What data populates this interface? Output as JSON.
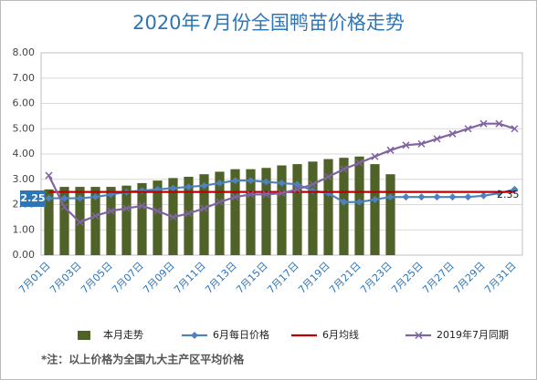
{
  "chart_data": {
    "type": "combo",
    "title": "2020年7月份全国鸭苗价格走势",
    "categories": [
      "7月01日",
      null,
      "7月03日",
      null,
      "7月05日",
      null,
      "7月07日",
      null,
      "7月09日",
      null,
      "7月11日",
      null,
      "7月13日",
      null,
      "7月15日",
      null,
      "7月17日",
      null,
      "7月19日",
      null,
      "7月21日",
      null,
      "7月23日",
      null,
      "7月25日",
      null,
      "7月27日",
      null,
      "7月29日",
      null,
      "7月31日"
    ],
    "series": [
      {
        "name": "本月走势",
        "type": "bar",
        "color": "#4f6228",
        "values": [
          2.6,
          2.7,
          2.7,
          2.7,
          2.7,
          2.75,
          2.85,
          2.95,
          3.05,
          3.1,
          3.2,
          3.3,
          3.4,
          3.4,
          3.45,
          3.55,
          3.6,
          3.7,
          3.8,
          3.85,
          3.9,
          3.6,
          3.2,
          null,
          null,
          null,
          null,
          null,
          null,
          null,
          null
        ]
      },
      {
        "name": "6月每日价格",
        "type": "line",
        "marker": "diamond",
        "color": "#4f81bd",
        "values": [
          2.25,
          2.25,
          2.25,
          2.3,
          2.4,
          2.5,
          2.55,
          2.6,
          2.65,
          2.7,
          2.75,
          2.85,
          2.95,
          2.95,
          2.9,
          2.85,
          2.8,
          2.55,
          2.45,
          2.1,
          2.1,
          2.2,
          2.3,
          2.3,
          2.3,
          2.3,
          2.3,
          2.3,
          2.35,
          2.45,
          2.6
        ]
      },
      {
        "name": "6月均线",
        "type": "line",
        "color": "#c00000",
        "values": [
          2.5,
          2.5,
          2.5,
          2.5,
          2.5,
          2.5,
          2.5,
          2.5,
          2.5,
          2.5,
          2.5,
          2.5,
          2.5,
          2.5,
          2.5,
          2.5,
          2.5,
          2.5,
          2.5,
          2.5,
          2.5,
          2.5,
          2.5,
          2.5,
          2.5,
          2.5,
          2.5,
          2.5,
          2.5,
          2.5,
          2.5
        ]
      },
      {
        "name": "2019年7月同期",
        "type": "line",
        "marker": "x",
        "color": "#8064a2",
        "values": [
          3.15,
          1.9,
          1.3,
          1.55,
          1.75,
          1.85,
          1.95,
          1.75,
          1.5,
          1.65,
          1.85,
          2.1,
          2.3,
          2.4,
          2.4,
          2.45,
          2.6,
          2.8,
          3.1,
          3.4,
          3.65,
          3.9,
          4.15,
          4.35,
          4.4,
          4.6,
          4.8,
          5.0,
          5.2,
          5.2,
          5.0
        ]
      }
    ],
    "annotations": [
      "2.25",
      "2.35"
    ],
    "ylim": [
      0,
      8
    ],
    "yticks": [
      {
        "value": 0,
        "label": "0.00"
      },
      {
        "value": 1,
        "label": "1.00"
      },
      {
        "value": 2,
        "label": "2.00"
      },
      {
        "value": 3,
        "label": "3.00"
      },
      {
        "value": 4,
        "label": "4.00"
      },
      {
        "value": 5,
        "label": "5.00"
      },
      {
        "value": 6,
        "label": "6.00"
      },
      {
        "value": 7,
        "label": "7.00"
      },
      {
        "value": 8,
        "label": "8.00"
      }
    ],
    "grid": true,
    "legend": "bottom",
    "note": "*注：以上价格为全国九大主产区平均价格"
  }
}
